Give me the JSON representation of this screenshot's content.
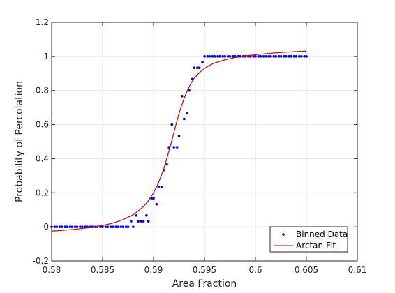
{
  "chart_data": {
    "type": "scatter",
    "title": "",
    "xlabel": "Area Fraction",
    "ylabel": "Probability of Percolation",
    "xlim": [
      0.58,
      0.61
    ],
    "ylim": [
      -0.2,
      1.2
    ],
    "xticks": [
      0.58,
      0.585,
      0.59,
      0.595,
      0.6,
      0.605,
      0.61
    ],
    "xtick_labels": [
      "0.58",
      "0.585",
      "0.59",
      "0.595",
      "0.6",
      "0.605",
      "0.61"
    ],
    "yticks": [
      -0.2,
      0,
      0.2,
      0.4,
      0.6,
      0.8,
      1.0,
      1.2
    ],
    "ytick_labels": [
      "-0.2",
      "0",
      "0.2",
      "0.4",
      "0.6",
      "0.8",
      "1",
      "1.2"
    ],
    "grid": true,
    "legend_position": "bottom-right",
    "series": [
      {
        "name": "Binned Data",
        "kind": "scatter",
        "color": "#0000ff",
        "x": [
          0.58,
          0.5803,
          0.5805,
          0.5808,
          0.581,
          0.5813,
          0.5815,
          0.5818,
          0.582,
          0.5823,
          0.5825,
          0.5828,
          0.583,
          0.5833,
          0.5835,
          0.5838,
          0.584,
          0.5843,
          0.5845,
          0.5848,
          0.585,
          0.5853,
          0.5855,
          0.5858,
          0.586,
          0.5863,
          0.5865,
          0.5868,
          0.587,
          0.5873,
          0.5875,
          0.5878,
          0.588,
          0.5883,
          0.5885,
          0.5888,
          0.589,
          0.5893,
          0.5895,
          0.5898,
          0.59,
          0.5903,
          0.5905,
          0.5908,
          0.591,
          0.5913,
          0.5915,
          0.5918,
          0.592,
          0.5923,
          0.5925,
          0.5928,
          0.593,
          0.5933,
          0.5935,
          0.5938,
          0.594,
          0.5943,
          0.5945,
          0.5948,
          0.595,
          0.5953,
          0.5955,
          0.5958,
          0.596,
          0.5963,
          0.5965,
          0.5968,
          0.597,
          0.5973,
          0.5975,
          0.5978,
          0.598,
          0.5983,
          0.5985,
          0.5988,
          0.599,
          0.5993,
          0.5995,
          0.5998,
          0.6,
          0.6003,
          0.6005,
          0.6008,
          0.601,
          0.6013,
          0.6015,
          0.6018,
          0.602,
          0.6023,
          0.6025,
          0.6028,
          0.603,
          0.6033,
          0.6035,
          0.6038,
          0.604,
          0.6043,
          0.6045,
          0.6048,
          0.605
        ],
        "y": [
          0,
          0,
          0,
          0,
          0,
          0,
          0,
          0,
          0,
          0,
          0,
          0,
          0,
          0,
          0,
          0,
          0,
          0,
          0,
          0,
          0,
          0,
          0,
          0,
          0,
          0,
          0,
          0,
          0,
          0,
          0,
          0.033,
          0,
          0.067,
          0.033,
          0.033,
          0.033,
          0.067,
          0.033,
          0.167,
          0.167,
          0.133,
          0.233,
          0.233,
          0.333,
          0.367,
          0.467,
          0.6,
          0.467,
          0.467,
          0.533,
          0.767,
          0.633,
          0.667,
          0.8,
          0.867,
          0.933,
          0.933,
          0.933,
          0.967,
          1,
          1,
          1,
          1,
          1,
          1,
          1,
          1,
          1,
          1,
          1,
          1,
          1,
          1,
          1,
          1,
          1,
          1,
          1,
          1,
          1,
          1,
          1,
          1,
          1,
          1,
          1,
          1,
          1,
          1,
          1,
          1,
          1,
          1,
          1,
          1,
          1,
          1,
          1,
          1,
          1
        ]
      },
      {
        "name": "Arctan Fit",
        "kind": "line",
        "color": "#cc0000",
        "x": [
          0.58,
          0.581,
          0.582,
          0.583,
          0.584,
          0.585,
          0.586,
          0.587,
          0.588,
          0.589,
          0.5895,
          0.59,
          0.5905,
          0.591,
          0.5913,
          0.5916,
          0.5919,
          0.5922,
          0.5925,
          0.5928,
          0.5931,
          0.5934,
          0.5937,
          0.594,
          0.5945,
          0.595,
          0.5955,
          0.596,
          0.597,
          0.598,
          0.599,
          0.6,
          0.601,
          0.602,
          0.603,
          0.604,
          0.605
        ],
        "y": [
          -0.025,
          -0.021,
          -0.016,
          -0.01,
          -0.002,
          0.008,
          0.022,
          0.042,
          0.071,
          0.118,
          0.154,
          0.2,
          0.26,
          0.34,
          0.4,
          0.465,
          0.53,
          0.6,
          0.665,
          0.72,
          0.77,
          0.81,
          0.845,
          0.872,
          0.905,
          0.93,
          0.948,
          0.962,
          0.98,
          0.993,
          1.003,
          1.01,
          1.016,
          1.021,
          1.025,
          1.028,
          1.031
        ]
      }
    ]
  }
}
